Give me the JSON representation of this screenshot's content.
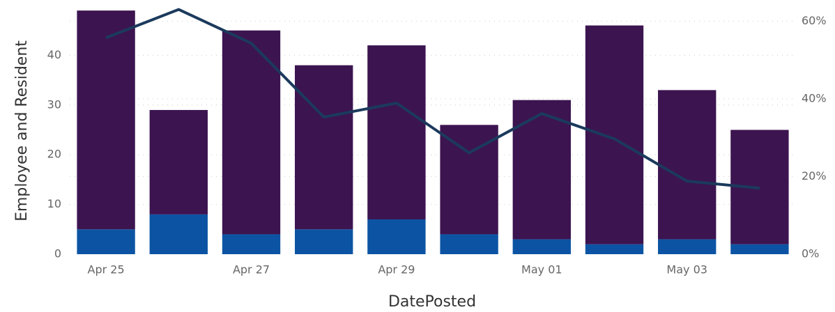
{
  "chart_data": {
    "type": "combo",
    "x_label": "DatePosted",
    "y_label": "Employee and Resident",
    "categories": [
      "Apr 25",
      null,
      "Apr 27",
      null,
      "Apr 29",
      null,
      "May 01",
      null,
      "May 03",
      null
    ],
    "series": [
      {
        "type": "bar",
        "color": "#0c54a3",
        "values": [
          5,
          8,
          4,
          5,
          7,
          4,
          3,
          2,
          3,
          2
        ]
      },
      {
        "type": "bar",
        "color": "#3c1450",
        "values": [
          44,
          21,
          41,
          33,
          35,
          22,
          28,
          44,
          30,
          23
        ]
      },
      {
        "type": "line",
        "axis": "y2",
        "color": "#1b3a5c",
        "values": [
          55.7,
          63.0,
          54.3,
          35.3,
          38.9,
          26.1,
          36.2,
          29.7,
          18.8,
          17.0
        ]
      }
    ],
    "ylim": [
      0,
      50
    ],
    "yticks": [
      0,
      10,
      20,
      30,
      40
    ],
    "y2lim": [
      0,
      64
    ],
    "y2ticks": [
      {
        "value": 0,
        "label": "0%"
      },
      {
        "value": 20,
        "label": "20%"
      },
      {
        "value": 40,
        "label": "40%"
      },
      {
        "value": 60,
        "label": "60%"
      }
    ],
    "grid": true
  }
}
